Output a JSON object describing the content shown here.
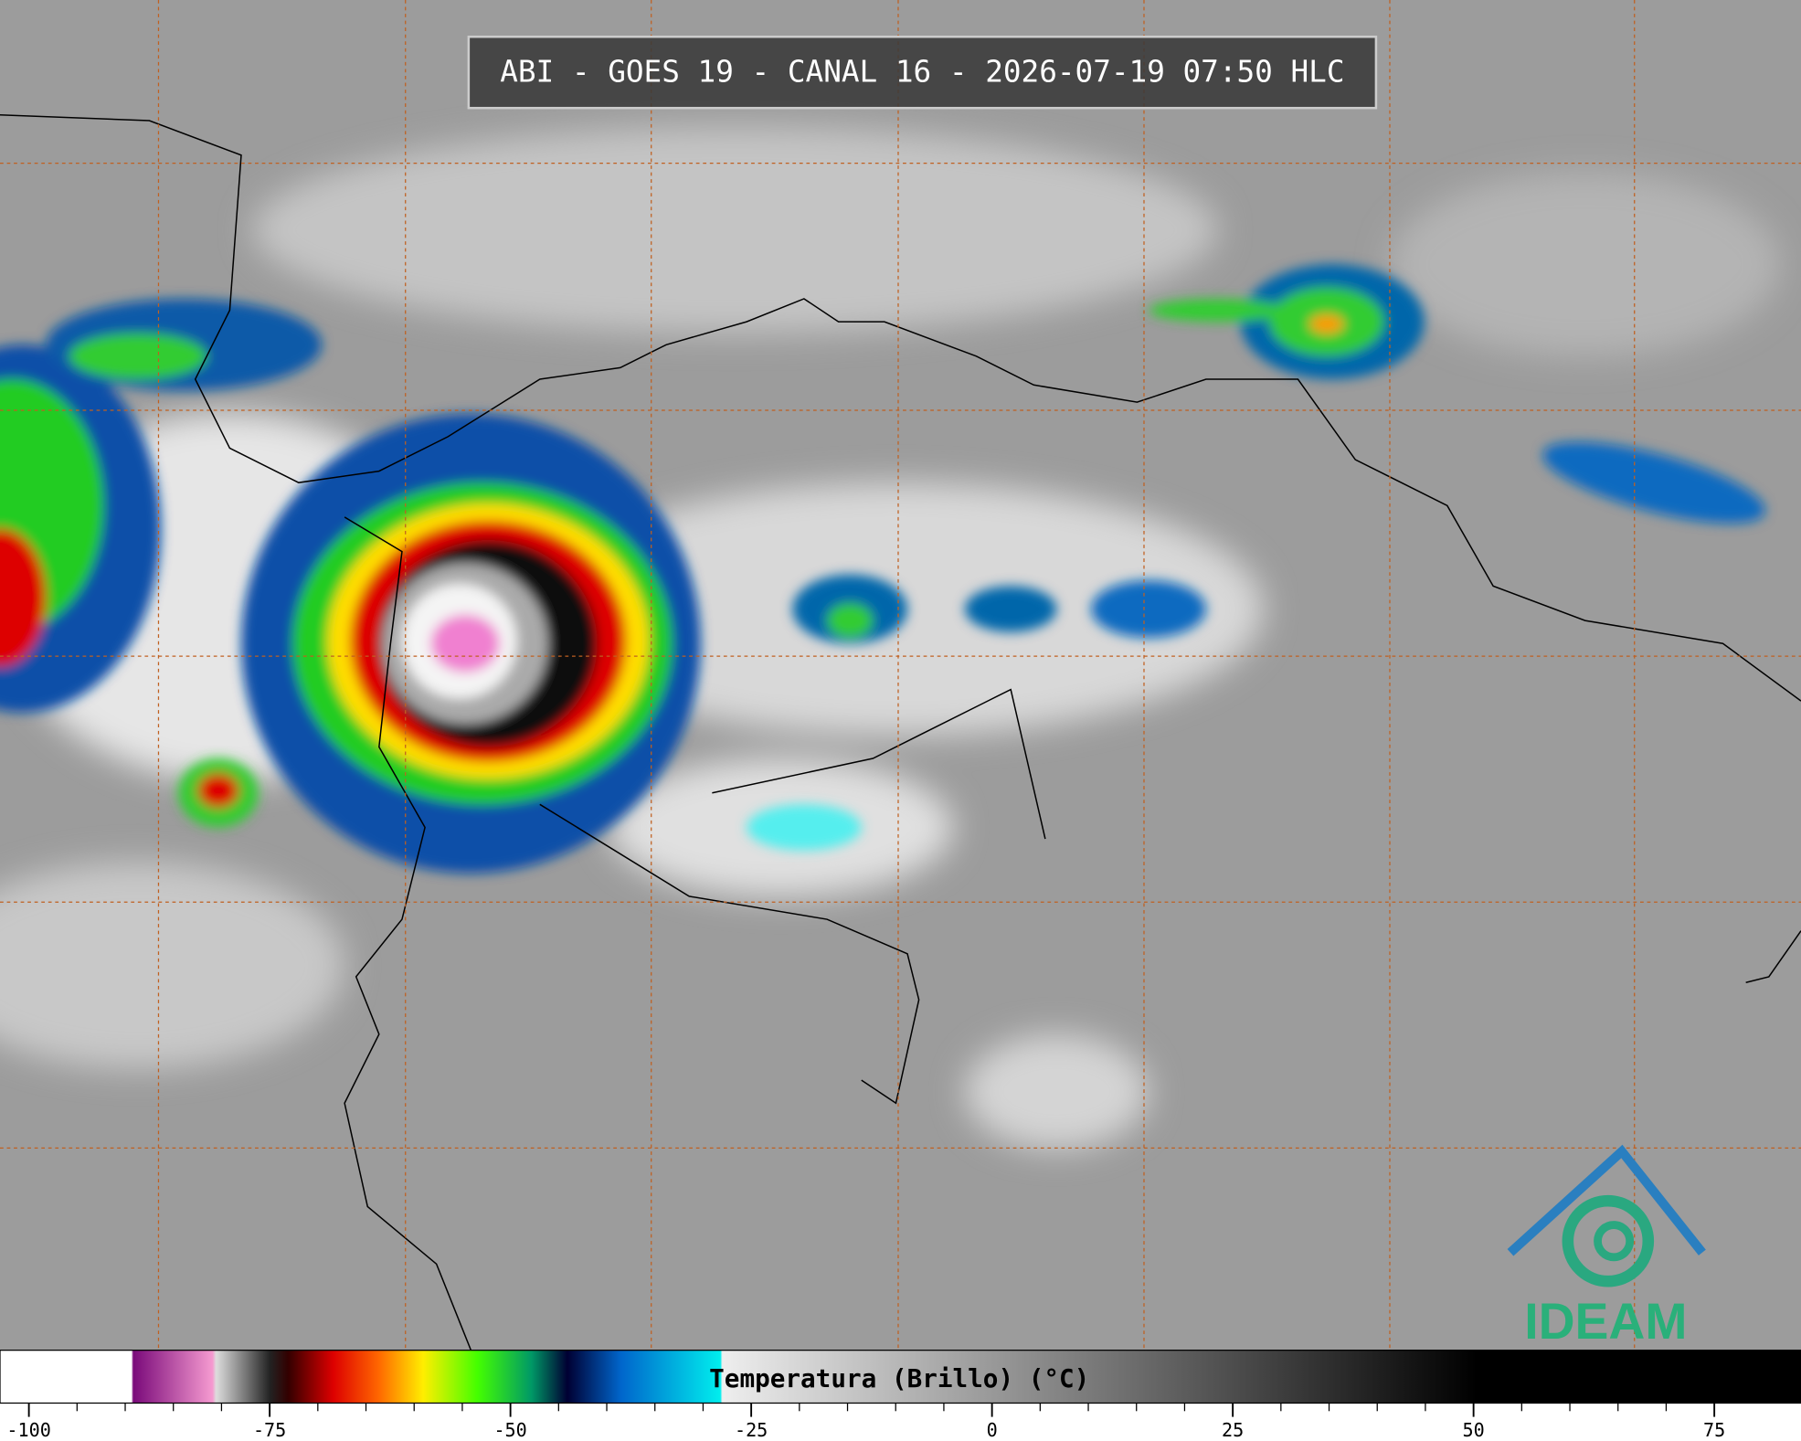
{
  "header": {
    "title": "ABI - GOES 19 - CANAL 16 - 2026-07-19 07:50 HLC"
  },
  "colorbar": {
    "label": "Temperatura (Brillo) (°C)",
    "xlim": [
      -103,
      84
    ],
    "ticks": [
      -100,
      -75,
      -50,
      -25,
      0,
      25,
      50,
      75
    ]
  },
  "logo": {
    "text": "IDEAM"
  }
}
